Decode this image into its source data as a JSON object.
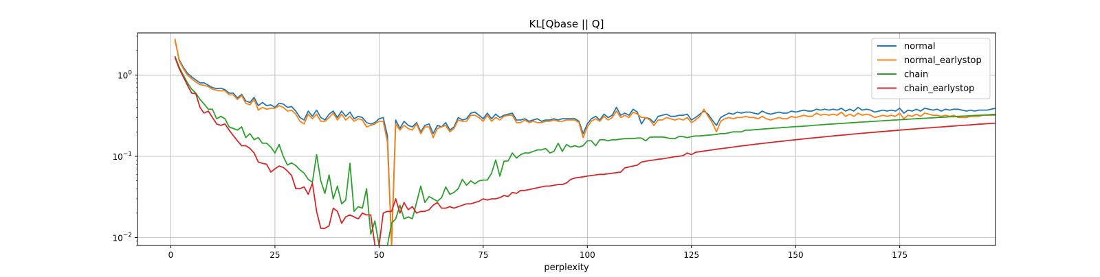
{
  "chart_data": {
    "type": "line",
    "title": "KL[Qbase || Q]",
    "xlabel": "perplexity",
    "ylabel": "",
    "xlim": [
      -8,
      198
    ],
    "ylim": [
      0.008,
      3.3
    ],
    "yscale": "log",
    "grid": true,
    "legend_position": "top-right",
    "x_ticks": [
      0,
      25,
      50,
      75,
      100,
      125,
      150,
      175
    ],
    "y_ticks": [
      {
        "value": 1,
        "base": "10",
        "exp": "0"
      },
      {
        "value": 0.1,
        "base": "10",
        "exp": "−1"
      },
      {
        "value": 0.01,
        "base": "10",
        "exp": "−2"
      }
    ],
    "x_start": 1,
    "x_step": 1,
    "series": [
      {
        "name": "normal",
        "color": "#1f77b4",
        "values": [
          2.7,
          1.55,
          1.25,
          1.05,
          0.95,
          0.87,
          0.8,
          0.8,
          0.75,
          0.7,
          0.68,
          0.69,
          0.66,
          0.6,
          0.6,
          0.52,
          0.58,
          0.48,
          0.46,
          0.53,
          0.42,
          0.46,
          0.42,
          0.43,
          0.4,
          0.45,
          0.44,
          0.4,
          0.41,
          0.36,
          0.3,
          0.28,
          0.36,
          0.31,
          0.37,
          0.3,
          0.28,
          0.33,
          0.36,
          0.3,
          0.36,
          0.31,
          0.35,
          0.29,
          0.31,
          0.3,
          0.26,
          0.25,
          0.26,
          0.29,
          0.3,
          0.18,
          0.008,
          0.28,
          0.22,
          0.27,
          0.24,
          0.23,
          0.26,
          0.2,
          0.24,
          0.25,
          0.19,
          0.24,
          0.23,
          0.26,
          0.21,
          0.23,
          0.3,
          0.28,
          0.29,
          0.34,
          0.35,
          0.32,
          0.29,
          0.34,
          0.29,
          0.33,
          0.3,
          0.32,
          0.33,
          0.34,
          0.28,
          0.28,
          0.29,
          0.27,
          0.28,
          0.29,
          0.27,
          0.28,
          0.28,
          0.29,
          0.28,
          0.29,
          0.29,
          0.29,
          0.29,
          0.27,
          0.19,
          0.25,
          0.29,
          0.31,
          0.28,
          0.33,
          0.3,
          0.32,
          0.4,
          0.32,
          0.34,
          0.32,
          0.38,
          0.35,
          0.25,
          0.3,
          0.29,
          0.26,
          0.31,
          0.32,
          0.33,
          0.31,
          0.31,
          0.32,
          0.32,
          0.33,
          0.28,
          0.3,
          0.33,
          0.36,
          0.33,
          0.28,
          0.24,
          0.3,
          0.32,
          0.34,
          0.33,
          0.35,
          0.34,
          0.35,
          0.35,
          0.34,
          0.33,
          0.36,
          0.34,
          0.33,
          0.34,
          0.35,
          0.34,
          0.34,
          0.36,
          0.35,
          0.36,
          0.37,
          0.36,
          0.36,
          0.38,
          0.37,
          0.38,
          0.37,
          0.38,
          0.37,
          0.39,
          0.36,
          0.38,
          0.36,
          0.4,
          0.37,
          0.38,
          0.37,
          0.35,
          0.36,
          0.37,
          0.36,
          0.37,
          0.36,
          0.39,
          0.34,
          0.37,
          0.36,
          0.38,
          0.36,
          0.39,
          0.38,
          0.37,
          0.38,
          0.36,
          0.38,
          0.37,
          0.38,
          0.38,
          0.37,
          0.36,
          0.37,
          0.36,
          0.37,
          0.37,
          0.37,
          0.38,
          0.39
        ]
      },
      {
        "name": "normal_earlystop",
        "color": "#ff7f0e",
        "values": [
          2.8,
          1.5,
          1.2,
          1.0,
          0.9,
          0.82,
          0.76,
          0.75,
          0.72,
          0.67,
          0.65,
          0.64,
          0.64,
          0.57,
          0.57,
          0.5,
          0.56,
          0.45,
          0.43,
          0.5,
          0.37,
          0.4,
          0.38,
          0.39,
          0.39,
          0.42,
          0.4,
          0.36,
          0.37,
          0.33,
          0.27,
          0.25,
          0.33,
          0.29,
          0.33,
          0.27,
          0.27,
          0.3,
          0.34,
          0.28,
          0.33,
          0.28,
          0.31,
          0.27,
          0.29,
          0.28,
          0.23,
          0.24,
          0.25,
          0.27,
          0.27,
          0.15,
          0.008,
          0.25,
          0.21,
          0.24,
          0.22,
          0.21,
          0.25,
          0.19,
          0.23,
          0.23,
          0.17,
          0.22,
          0.23,
          0.24,
          0.2,
          0.22,
          0.28,
          0.27,
          0.27,
          0.32,
          0.32,
          0.3,
          0.27,
          0.32,
          0.27,
          0.3,
          0.28,
          0.31,
          0.32,
          0.32,
          0.26,
          0.26,
          0.28,
          0.26,
          0.27,
          0.26,
          0.26,
          0.27,
          0.27,
          0.28,
          0.27,
          0.27,
          0.28,
          0.28,
          0.28,
          0.26,
          0.17,
          0.23,
          0.27,
          0.29,
          0.27,
          0.31,
          0.28,
          0.3,
          0.36,
          0.3,
          0.32,
          0.3,
          0.35,
          0.33,
          0.3,
          0.3,
          0.28,
          0.24,
          0.28,
          0.28,
          0.3,
          0.29,
          0.28,
          0.29,
          0.28,
          0.3,
          0.26,
          0.28,
          0.31,
          0.38,
          0.31,
          0.26,
          0.2,
          0.27,
          0.29,
          0.3,
          0.29,
          0.3,
          0.3,
          0.31,
          0.3,
          0.3,
          0.29,
          0.31,
          0.29,
          0.28,
          0.29,
          0.3,
          0.29,
          0.29,
          0.31,
          0.3,
          0.31,
          0.32,
          0.31,
          0.31,
          0.34,
          0.32,
          0.33,
          0.32,
          0.33,
          0.32,
          0.35,
          0.31,
          0.33,
          0.31,
          0.34,
          0.32,
          0.33,
          0.32,
          0.3,
          0.31,
          0.32,
          0.31,
          0.32,
          0.31,
          0.34,
          0.29,
          0.32,
          0.31,
          0.33,
          0.31,
          0.34,
          0.33,
          0.32,
          0.32,
          0.31,
          0.32,
          0.31,
          0.32,
          0.3,
          0.3,
          0.3,
          0.31,
          0.31,
          0.31,
          0.32,
          0.32,
          0.32,
          0.32
        ]
      },
      {
        "name": "chain",
        "color": "#2ca02c",
        "values": [
          1.7,
          1.25,
          1.0,
          0.8,
          0.67,
          0.6,
          0.5,
          0.44,
          0.38,
          0.38,
          0.29,
          0.31,
          0.29,
          0.23,
          0.22,
          0.21,
          0.23,
          0.17,
          0.19,
          0.16,
          0.17,
          0.145,
          0.145,
          0.13,
          0.11,
          0.14,
          0.1,
          0.078,
          0.083,
          0.077,
          0.068,
          0.062,
          0.052,
          0.048,
          0.105,
          0.05,
          0.035,
          0.059,
          0.03,
          0.043,
          0.026,
          0.029,
          0.082,
          0.021,
          0.024,
          0.023,
          0.04,
          0.011,
          0.016,
          0.008,
          0.008,
          0.008,
          0.015,
          0.017,
          0.025,
          0.017,
          0.018,
          0.017,
          0.027,
          0.043,
          0.027,
          0.032,
          0.03,
          0.028,
          0.031,
          0.042,
          0.034,
          0.036,
          0.04,
          0.052,
          0.044,
          0.05,
          0.046,
          0.05,
          0.051,
          0.051,
          0.062,
          0.09,
          0.057,
          0.087,
          0.088,
          0.11,
          0.095,
          0.105,
          0.11,
          0.11,
          0.115,
          0.12,
          0.12,
          0.125,
          0.11,
          0.115,
          0.145,
          0.115,
          0.14,
          0.13,
          0.135,
          0.13,
          0.135,
          0.155,
          0.155,
          0.135,
          0.16,
          0.16,
          0.155,
          0.16,
          0.16,
          0.163,
          0.165,
          0.165,
          0.165,
          0.168,
          0.168,
          0.155,
          0.172,
          0.173,
          0.173,
          0.173,
          0.17,
          0.165,
          0.165,
          0.175,
          0.175,
          0.17,
          0.175,
          0.178,
          0.178,
          0.18,
          0.182,
          0.184,
          0.186,
          0.19,
          0.19,
          0.195,
          0.2,
          0.2,
          0.2,
          0.21,
          0.21,
          0.212,
          0.214,
          0.216,
          0.218,
          0.22,
          0.222,
          0.224,
          0.226,
          0.228,
          0.23,
          0.232,
          0.233,
          0.235,
          0.237,
          0.24,
          0.242,
          0.244,
          0.246,
          0.248,
          0.25,
          0.252,
          0.254,
          0.256,
          0.258,
          0.26,
          0.262,
          0.264,
          0.266,
          0.268,
          0.27,
          0.272,
          0.274,
          0.276,
          0.278,
          0.28,
          0.282,
          0.284,
          0.286,
          0.288,
          0.29,
          0.292,
          0.294,
          0.296,
          0.298,
          0.3,
          0.302,
          0.304,
          0.306,
          0.308,
          0.31,
          0.312,
          0.314,
          0.316,
          0.318,
          0.32,
          0.322,
          0.324,
          0.326,
          0.328
        ]
      },
      {
        "name": "chain_earlystop",
        "color": "#d62728",
        "values": [
          1.65,
          1.2,
          0.95,
          0.75,
          0.6,
          0.59,
          0.4,
          0.34,
          0.36,
          0.3,
          0.25,
          0.24,
          0.25,
          0.21,
          0.18,
          0.155,
          0.135,
          0.135,
          0.125,
          0.11,
          0.085,
          0.082,
          0.08,
          0.064,
          0.07,
          0.076,
          0.073,
          0.066,
          0.058,
          0.04,
          0.04,
          0.042,
          0.034,
          0.047,
          0.021,
          0.013,
          0.013,
          0.014,
          0.023,
          0.021,
          0.015,
          0.018,
          0.019,
          0.018,
          0.017,
          0.02,
          0.019,
          0.019,
          0.008,
          0.008,
          0.02,
          0.021,
          0.021,
          0.03,
          0.02,
          0.027,
          0.022,
          0.024,
          0.02,
          0.021,
          0.021,
          0.022,
          0.025,
          0.027,
          0.023,
          0.023,
          0.024,
          0.023,
          0.024,
          0.025,
          0.026,
          0.026,
          0.027,
          0.028,
          0.03,
          0.029,
          0.03,
          0.03,
          0.031,
          0.033,
          0.032,
          0.036,
          0.035,
          0.038,
          0.038,
          0.039,
          0.04,
          0.041,
          0.042,
          0.043,
          0.043,
          0.044,
          0.045,
          0.045,
          0.047,
          0.052,
          0.054,
          0.055,
          0.056,
          0.057,
          0.058,
          0.059,
          0.06,
          0.06,
          0.061,
          0.062,
          0.063,
          0.064,
          0.072,
          0.074,
          0.076,
          0.078,
          0.085,
          0.087,
          0.089,
          0.09,
          0.092,
          0.093,
          0.095,
          0.097,
          0.099,
          0.1,
          0.102,
          0.11,
          0.105,
          0.112,
          0.114,
          0.116,
          0.118,
          0.12,
          0.122,
          0.124,
          0.126,
          0.128,
          0.13,
          0.132,
          0.134,
          0.136,
          0.138,
          0.14,
          0.142,
          0.144,
          0.146,
          0.148,
          0.15,
          0.152,
          0.154,
          0.156,
          0.158,
          0.16,
          0.162,
          0.164,
          0.166,
          0.168,
          0.17,
          0.172,
          0.174,
          0.176,
          0.178,
          0.18,
          0.182,
          0.184,
          0.186,
          0.188,
          0.19,
          0.192,
          0.194,
          0.196,
          0.198,
          0.2,
          0.202,
          0.204,
          0.206,
          0.208,
          0.21,
          0.212,
          0.214,
          0.216,
          0.218,
          0.22,
          0.222,
          0.224,
          0.226,
          0.228,
          0.23,
          0.232,
          0.234,
          0.236,
          0.238,
          0.24,
          0.242,
          0.244,
          0.246,
          0.248,
          0.25,
          0.252,
          0.254,
          0.256,
          0.258,
          0.26,
          0.262,
          0.264,
          0.266
        ]
      }
    ]
  }
}
